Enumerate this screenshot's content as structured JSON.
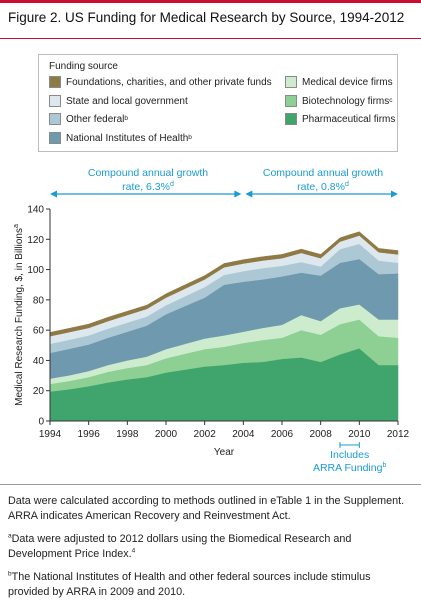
{
  "figure": {
    "title": "Figure 2. US Funding for Medical Research by Source, 1994-2012"
  },
  "legend": {
    "heading": "Funding source",
    "items": [
      {
        "label": "Foundations, charities, and other private funds",
        "sup": "",
        "color": "#8f7a45"
      },
      {
        "label": "State and local government",
        "sup": "",
        "color": "#dde8ee"
      },
      {
        "label": "Other federal",
        "sup": "b",
        "color": "#adc8d5"
      },
      {
        "label": "National Institutes of Health",
        "sup": "b",
        "color": "#6f99ae"
      },
      {
        "label": "Medical device firms",
        "sup": "",
        "color": "#cdeccd"
      },
      {
        "label": "Biotechnology firms",
        "sup": "c",
        "color": "#8ecf93"
      },
      {
        "label": "Pharmaceutical firms",
        "sup": "",
        "color": "#3fa56c"
      }
    ]
  },
  "annotations": {
    "cagr_left_line1": "Compound annual growth",
    "cagr_left_line2": "rate, 6.3%",
    "cagr_left_sup": "d",
    "cagr_right_line1": "Compound annual growth",
    "cagr_right_line2": "rate, 0.8%",
    "cagr_right_sup": "d",
    "arra_line1": "Includes",
    "arra_line2": "ARRA Funding",
    "arra_sup": "b",
    "arrow_color": "#1b9ad6"
  },
  "chart_data": {
    "type": "area",
    "stacked": true,
    "x": [
      1994,
      1995,
      1996,
      1997,
      1998,
      1999,
      2000,
      2001,
      2002,
      2003,
      2004,
      2005,
      2006,
      2007,
      2008,
      2009,
      2010,
      2011,
      2012
    ],
    "xticks": [
      1994,
      1996,
      1998,
      2000,
      2002,
      2004,
      2006,
      2008,
      2010,
      2012
    ],
    "yticks": [
      0,
      20,
      40,
      60,
      80,
      100,
      120,
      140
    ],
    "xlabel": "Year",
    "ylabel": "Medical Research Funding, $, in Billions",
    "ylabel_sup": "a",
    "xlim": [
      1994,
      2012
    ],
    "ylim": [
      0,
      140
    ],
    "series": [
      {
        "name": "Pharmaceutical firms",
        "color": "#3fa56c",
        "values": [
          19.5,
          21,
          23,
          25.5,
          27.5,
          29,
          32,
          34,
          36,
          37,
          38.5,
          39,
          41,
          42,
          39,
          44,
          48,
          37,
          37
        ]
      },
      {
        "name": "Biotechnology firms",
        "color": "#8ecf93",
        "values": [
          5,
          5.5,
          6,
          7,
          7.5,
          8,
          9.5,
          10.5,
          11.5,
          12,
          13,
          14.5,
          14,
          18,
          18,
          20,
          19,
          19,
          18
        ]
      },
      {
        "name": "Medical device firms",
        "color": "#cdeccd",
        "values": [
          3.5,
          3.7,
          4,
          4.5,
          5,
          5.5,
          6,
          6.5,
          7,
          7.5,
          7.5,
          8,
          8.5,
          10,
          9,
          10.5,
          10,
          11,
          12
        ]
      },
      {
        "name": "National Institutes of Health",
        "color": "#6f99ae",
        "values": [
          17,
          17.5,
          17.5,
          18,
          19,
          20.5,
          23,
          25,
          27,
          33.5,
          33,
          32,
          32,
          28,
          30,
          30,
          30,
          30,
          30.5
        ]
      },
      {
        "name": "Other federal",
        "color": "#adc8d5",
        "values": [
          6,
          6,
          6,
          6,
          6,
          6,
          6,
          6.5,
          7,
          6.5,
          7,
          7.5,
          7,
          7,
          6,
          9,
          10,
          9,
          7
        ]
      },
      {
        "name": "State and local government",
        "color": "#dde8ee",
        "values": [
          5,
          5,
          5,
          5,
          5,
          5,
          5,
          5,
          5,
          5,
          5,
          5,
          5,
          6,
          5.5,
          5,
          5.5,
          5.5,
          5.5
        ]
      },
      {
        "name": "Foundations, charities, and other private funds",
        "color": "#8f7a45",
        "values": [
          2.5,
          2.5,
          2.5,
          2.5,
          2.5,
          2.5,
          2.5,
          2.5,
          2.5,
          2.5,
          2.5,
          2.5,
          2.5,
          2.5,
          2.5,
          2.5,
          2.5,
          2.5,
          2.5
        ]
      }
    ]
  },
  "notes": {
    "main": "Data were calculated according to methods outlined in eTable 1 in the Supplement. ARRA indicates American Recovery and Reinvestment Act.",
    "a_mark": "a",
    "a": "Data were adjusted to 2012 dollars using the Biomedical Research and Development Price Index.",
    "a_ref": "4",
    "b_mark": "b",
    "b": "The National Institutes of Health and other federal sources include stimulus provided by ARRA in 2009 and 2010."
  }
}
